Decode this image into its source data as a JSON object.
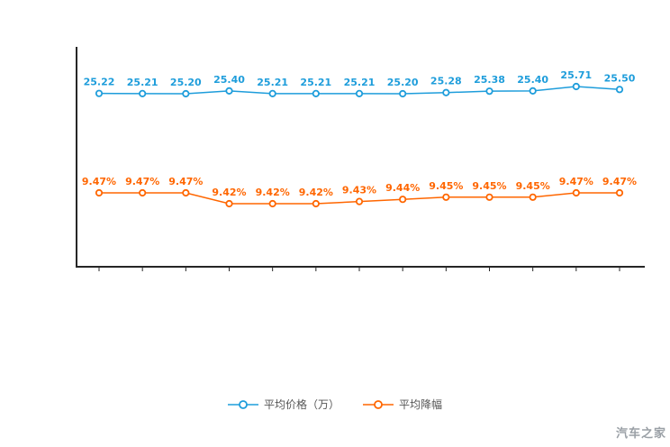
{
  "chart_data": {
    "type": "line",
    "title": "",
    "xlabel": "",
    "ylabel": "",
    "grid": false,
    "legend_position": "bottom",
    "axis_color": "#262626",
    "series": [
      {
        "name": "平均价格（万）",
        "color": "#1e9ddb",
        "values": [
          25.22,
          25.21,
          25.2,
          25.4,
          25.21,
          25.21,
          25.21,
          25.2,
          25.28,
          25.38,
          25.4,
          25.71,
          25.5
        ],
        "labels": [
          "25.22",
          "25.21",
          "25.20",
          "25.40",
          "25.21",
          "25.21",
          "25.21",
          "25.20",
          "25.28",
          "25.38",
          "25.40",
          "25.71",
          "25.50"
        ]
      },
      {
        "name": "平均降幅",
        "color": "#ff6600",
        "values": [
          9.47,
          9.47,
          9.47,
          9.42,
          9.42,
          9.42,
          9.43,
          9.44,
          9.45,
          9.45,
          9.45,
          9.47,
          9.47
        ],
        "labels": [
          "9.47%",
          "9.47%",
          "9.47%",
          "9.42%",
          "9.42%",
          "9.42%",
          "9.43%",
          "9.44%",
          "9.45%",
          "9.45%",
          "9.45%",
          "9.47%",
          "9.47%"
        ]
      }
    ]
  },
  "legend": {
    "items": [
      {
        "label": "平均价格（万）",
        "color": "#1e9ddb"
      },
      {
        "label": "平均降幅",
        "color": "#ff6600"
      }
    ]
  },
  "watermark": "汽车之家"
}
